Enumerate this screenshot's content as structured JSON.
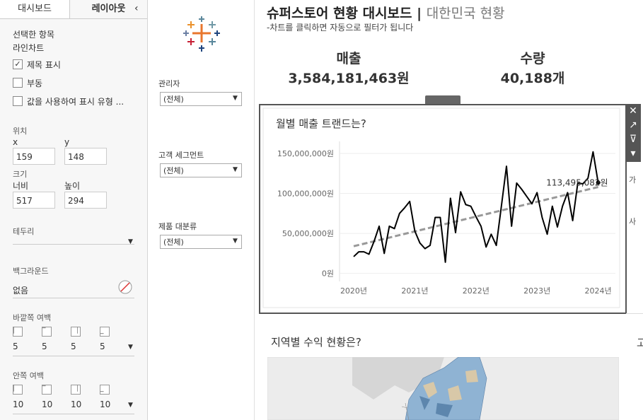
{
  "left_panel": {
    "tabs": [
      "대시보드",
      "레이아웃"
    ],
    "selected_label": "선택한 항목",
    "selected_item": "라인차트",
    "checkboxes": [
      {
        "label": "제목 표시",
        "checked": true
      },
      {
        "label": "부동",
        "checked": false
      },
      {
        "label": "값을 사용하여 표시 유형 ...",
        "checked": false
      }
    ],
    "position": {
      "label": "위치",
      "x_label": "x",
      "x": "159",
      "y_label": "y",
      "y": "148"
    },
    "size": {
      "label": "크기",
      "width_label": "너비",
      "width": "517",
      "height_label": "높이",
      "height": "294"
    },
    "border_label": "테두리",
    "background_label": "백그라운드",
    "background_value": "없음",
    "outer_padding": {
      "label": "바깥쪽 여백",
      "values": [
        "5",
        "5",
        "5",
        "5"
      ]
    },
    "inner_padding": {
      "label": "안쪽 여백",
      "values": [
        "10",
        "10",
        "10",
        "10"
      ]
    }
  },
  "filters": [
    {
      "label": "관리자",
      "value": "(전체)"
    },
    {
      "label": "고객 세그먼트",
      "value": "(전체)"
    },
    {
      "label": "제품 대분류",
      "value": "(전체)"
    }
  ],
  "header": {
    "title": "슈퍼스토어 현황 대시보드 |",
    "subtitle": "대한민국 현황",
    "note": "-차트를 클릭하면 자동으로 필터가 됩니다"
  },
  "kpis": [
    {
      "label": "매출",
      "value": "3,584,181,463원"
    },
    {
      "label": "수량",
      "value": "40,188개"
    }
  ],
  "chart_data": {
    "type": "line",
    "title": "월별 매출 트랜드는?",
    "categories": [
      "2020년",
      null,
      null,
      null,
      null,
      null,
      null,
      null,
      null,
      null,
      null,
      null,
      "2021년",
      null,
      null,
      null,
      null,
      null,
      null,
      null,
      null,
      null,
      null,
      null,
      "2022년",
      null,
      null,
      null,
      null,
      null,
      null,
      null,
      null,
      null,
      null,
      null,
      "2023년",
      null,
      null,
      null,
      null,
      null,
      null,
      null,
      null,
      null,
      null,
      null,
      "2024년"
    ],
    "values": [
      21000000,
      27000000,
      27000000,
      24000000,
      40000000,
      59000000,
      25000000,
      59000000,
      56000000,
      75000000,
      82000000,
      90000000,
      53000000,
      38000000,
      31000000,
      35000000,
      70000000,
      70000000,
      14000000,
      94000000,
      51000000,
      102000000,
      86000000,
      84000000,
      71000000,
      59000000,
      33000000,
      49000000,
      35000000,
      84000000,
      134000000,
      59000000,
      113000000,
      105000000,
      96000000,
      87000000,
      101000000,
      70000000,
      49000000,
      84000000,
      58000000,
      84000000,
      101000000,
      66000000,
      113000000,
      112000000,
      119000000,
      152000000,
      113495082
    ],
    "value_labels": [
      null,
      null,
      null,
      null,
      null,
      null,
      null,
      null,
      null,
      null,
      null,
      null,
      null,
      null,
      null,
      null,
      null,
      null,
      null,
      null,
      null,
      null,
      null,
      null,
      null,
      null,
      null,
      null,
      null,
      null,
      null,
      null,
      null,
      null,
      null,
      null,
      null,
      null,
      null,
      null,
      null,
      null,
      null,
      null,
      null,
      null,
      null,
      null,
      "113,495,082원"
    ],
    "color": "#000000",
    "trend_line": {
      "values": [
        34000000,
        108000000
      ],
      "color": "#999999"
    },
    "ylim": [
      -10000000,
      165000000
    ],
    "yticks": [
      {
        "value": 0,
        "label": "0원"
      },
      {
        "value": 50000000,
        "label": "50,000,000원"
      },
      {
        "value": 100000000,
        "label": "100,000,000원"
      },
      {
        "value": 150000000,
        "label": "150,000,000원"
      }
    ],
    "grid": true
  },
  "map_section": {
    "title": "지역별 수익 현황은?"
  },
  "cutoff_texts": [
    "가",
    "사",
    "고"
  ]
}
